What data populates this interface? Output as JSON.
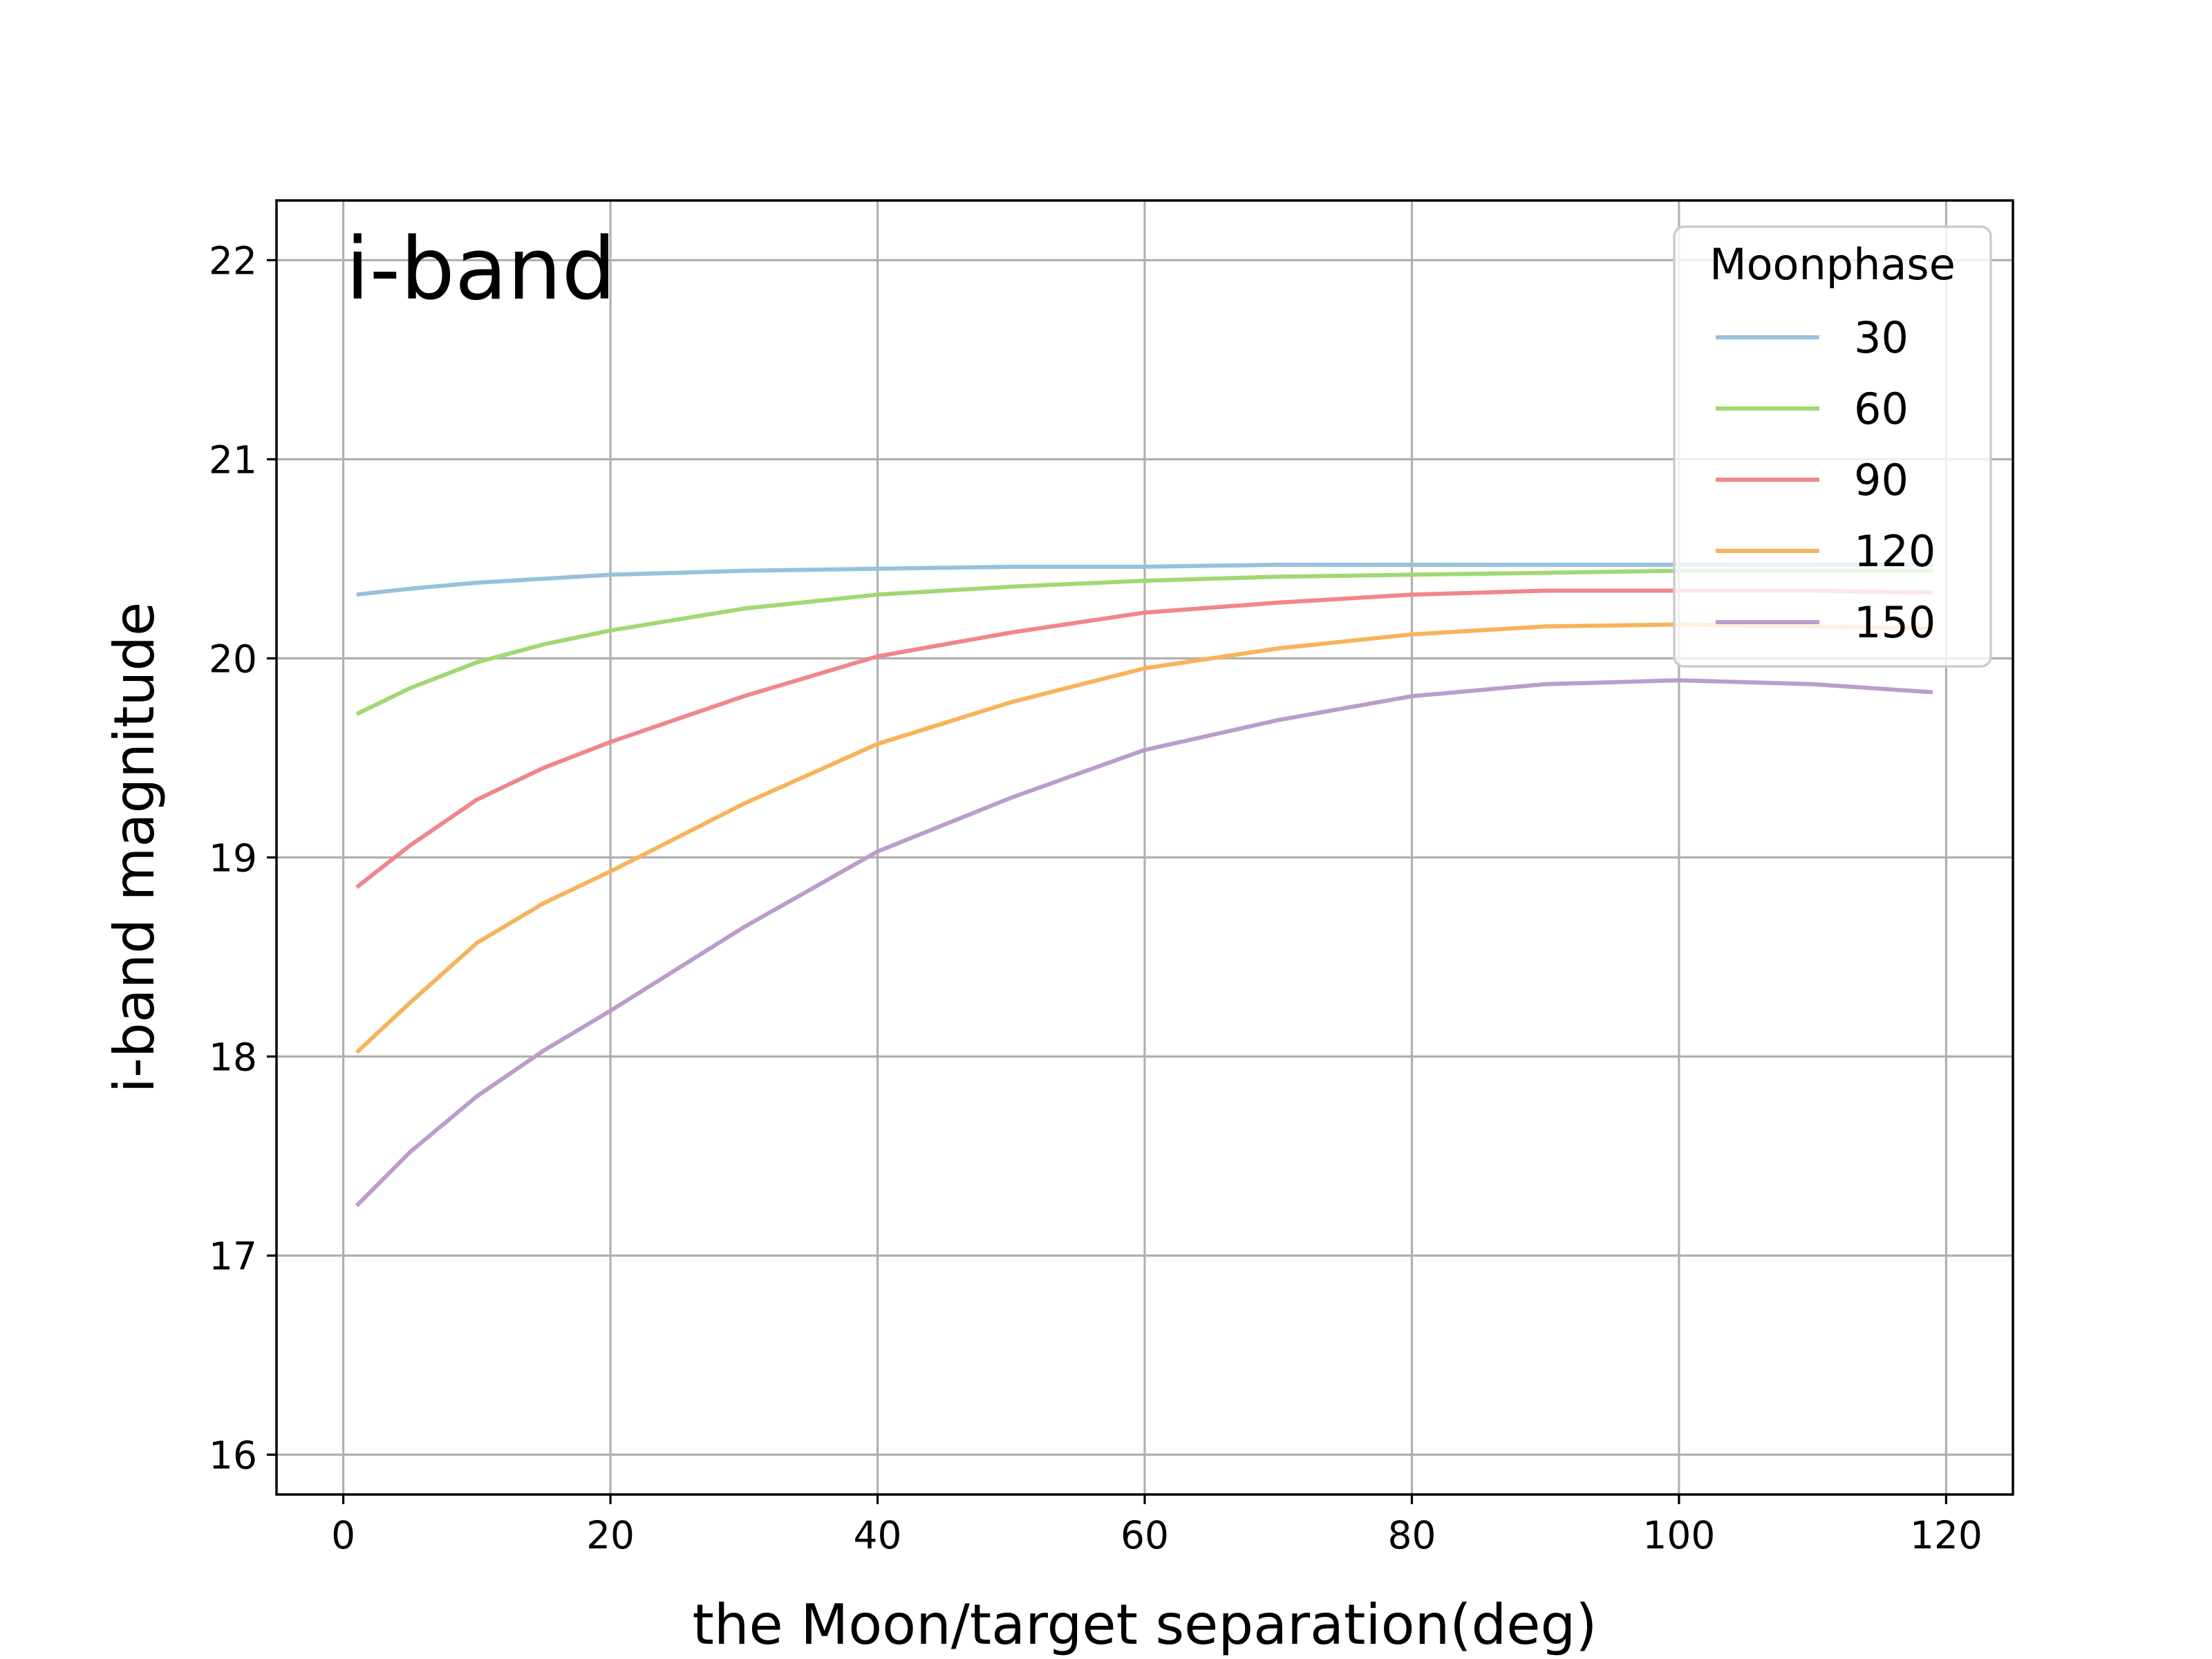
{
  "chart_data": {
    "type": "line",
    "annotation": "i-band",
    "xlabel": "the Moon/target separation(deg)",
    "ylabel": "i-band magnitude",
    "xlim": [
      -5,
      125
    ],
    "ylim": [
      15.8,
      22.3
    ],
    "xticks": [
      0,
      20,
      40,
      60,
      80,
      100,
      120
    ],
    "yticks": [
      16,
      17,
      18,
      19,
      20,
      21,
      22
    ],
    "grid": true,
    "legend": {
      "title": "Moonphase",
      "position": "top-right"
    },
    "x": [
      1,
      5,
      10,
      15,
      20,
      30,
      40,
      50,
      60,
      70,
      80,
      90,
      100,
      110,
      119
    ],
    "series": [
      {
        "name": "30",
        "color": "#97c1dc",
        "values": [
          20.32,
          20.35,
          20.38,
          20.4,
          20.42,
          20.44,
          20.45,
          20.46,
          20.46,
          20.47,
          20.47,
          20.47,
          20.47,
          20.47,
          20.47
        ]
      },
      {
        "name": "60",
        "color": "#a0d873",
        "values": [
          19.72,
          19.85,
          19.98,
          20.07,
          20.14,
          20.25,
          20.32,
          20.36,
          20.39,
          20.41,
          20.42,
          20.43,
          20.44,
          20.44,
          20.44
        ]
      },
      {
        "name": "90",
        "color": "#f0868c",
        "values": [
          18.85,
          19.06,
          19.29,
          19.45,
          19.58,
          19.81,
          20.01,
          20.13,
          20.23,
          20.28,
          20.32,
          20.34,
          20.34,
          20.34,
          20.33
        ]
      },
      {
        "name": "120",
        "color": "#f7b35b",
        "values": [
          18.02,
          18.27,
          18.57,
          18.77,
          18.93,
          19.27,
          19.57,
          19.78,
          19.95,
          20.05,
          20.12,
          20.16,
          20.17,
          20.16,
          20.15
        ]
      },
      {
        "name": "150",
        "color": "#bb9ccc",
        "values": [
          17.25,
          17.52,
          17.8,
          18.03,
          18.23,
          18.65,
          19.03,
          19.3,
          19.54,
          19.69,
          19.81,
          19.87,
          19.89,
          19.87,
          19.83
        ]
      }
    ]
  }
}
